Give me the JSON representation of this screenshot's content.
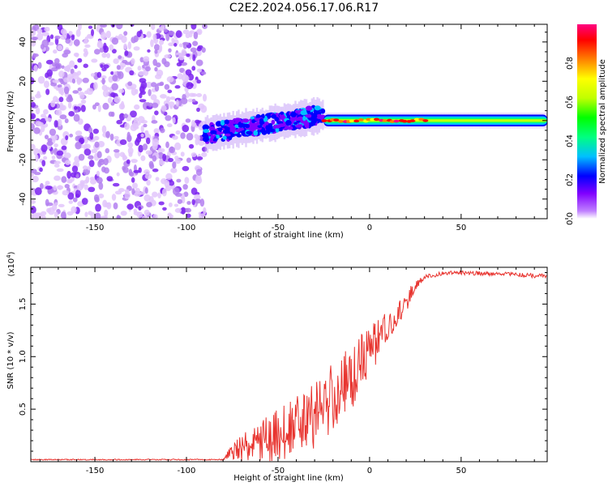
{
  "title": "C2E2.2024.056.17.06.R17",
  "chart_data": [
    {
      "type": "heatmap",
      "title": "C2E2.2024.056.17.06.R17",
      "xlabel": "Height of straight line (km)",
      "ylabel": "Frequency (Hz)",
      "xlim": [
        -185,
        97
      ],
      "ylim": [
        -50,
        49
      ],
      "xticks": [
        -150,
        -100,
        -50,
        0,
        50
      ],
      "yticks": [
        -40,
        -20,
        0,
        20,
        40
      ],
      "xtick_labels": [
        "-150",
        "-100",
        "-50",
        "0",
        "50"
      ],
      "ytick_labels": [
        "-40",
        "-20",
        "0",
        "20",
        "40"
      ],
      "colorbar": {
        "label": "Normalized spectral amplitude",
        "range": [
          0,
          1
        ],
        "ticks": [
          0.0,
          0.2,
          0.4,
          0.6,
          0.8
        ],
        "tick_labels": [
          "0.0",
          "0.2",
          "0.4",
          "0.6",
          "0.8"
        ],
        "colors": [
          "#ffffff",
          "#c080ff",
          "#8000ff",
          "#0000ff",
          "#00c0ff",
          "#00ff80",
          "#00ff00",
          "#c0ff00",
          "#ffff00",
          "#ff8000",
          "#ff0000",
          "#ff0080"
        ]
      },
      "regions": [
        {
          "name": "noise",
          "x_range": [
            -185,
            -90
          ],
          "freq_range": [
            -50,
            49
          ],
          "amplitude": [
            0.02,
            0.12
          ]
        },
        {
          "name": "onset",
          "x_range": [
            -90,
            -25
          ],
          "center_freq": [
            -7,
            3
          ],
          "amplitude": [
            0.15,
            0.35
          ]
        },
        {
          "name": "tone",
          "x_range": [
            -25,
            97
          ],
          "center_freq": 0,
          "amplitude": [
            0.5,
            1.0
          ]
        }
      ]
    },
    {
      "type": "line",
      "xlabel": "Height of straight line (km)",
      "ylabel": "SNR (10 * v/v)",
      "y_multiplier": "(x10",
      "y_multiplier_exp": "4",
      "y_multiplier_close": ")",
      "xlim": [
        -185,
        97
      ],
      "ylim": [
        0,
        1.85
      ],
      "xticks": [
        -150,
        -100,
        -50,
        0,
        50
      ],
      "yticks": [
        0.5,
        1.0,
        1.5
      ],
      "xtick_labels": [
        "-150",
        "-100",
        "-50",
        "0",
        "50"
      ],
      "ytick_labels": [
        "0.5",
        "1.0",
        "1.5"
      ],
      "series": [
        {
          "name": "SNR",
          "color": "#e8342f",
          "trend": {
            "x": [
              -185,
              -80,
              -75,
              -60,
              -50,
              -40,
              -30,
              -20,
              -10,
              0,
              10,
              20,
              25,
              30,
              40,
              50,
              60,
              70,
              80,
              90,
              97
            ],
            "y": [
              0.02,
              0.02,
              0.1,
              0.18,
              0.25,
              0.33,
              0.45,
              0.6,
              0.8,
              1.05,
              1.25,
              1.52,
              1.68,
              1.76,
              1.79,
              1.8,
              1.79,
              1.79,
              1.78,
              1.77,
              1.77
            ]
          },
          "spread": {
            "x": [
              -185,
              -80,
              -70,
              -50,
              -30,
              -15,
              0,
              15,
              25,
              30,
              97
            ],
            "y": [
              0.005,
              0.005,
              0.14,
              0.26,
              0.34,
              0.36,
              0.25,
              0.15,
              0.05,
              0.02,
              0.02
            ]
          }
        }
      ]
    }
  ]
}
